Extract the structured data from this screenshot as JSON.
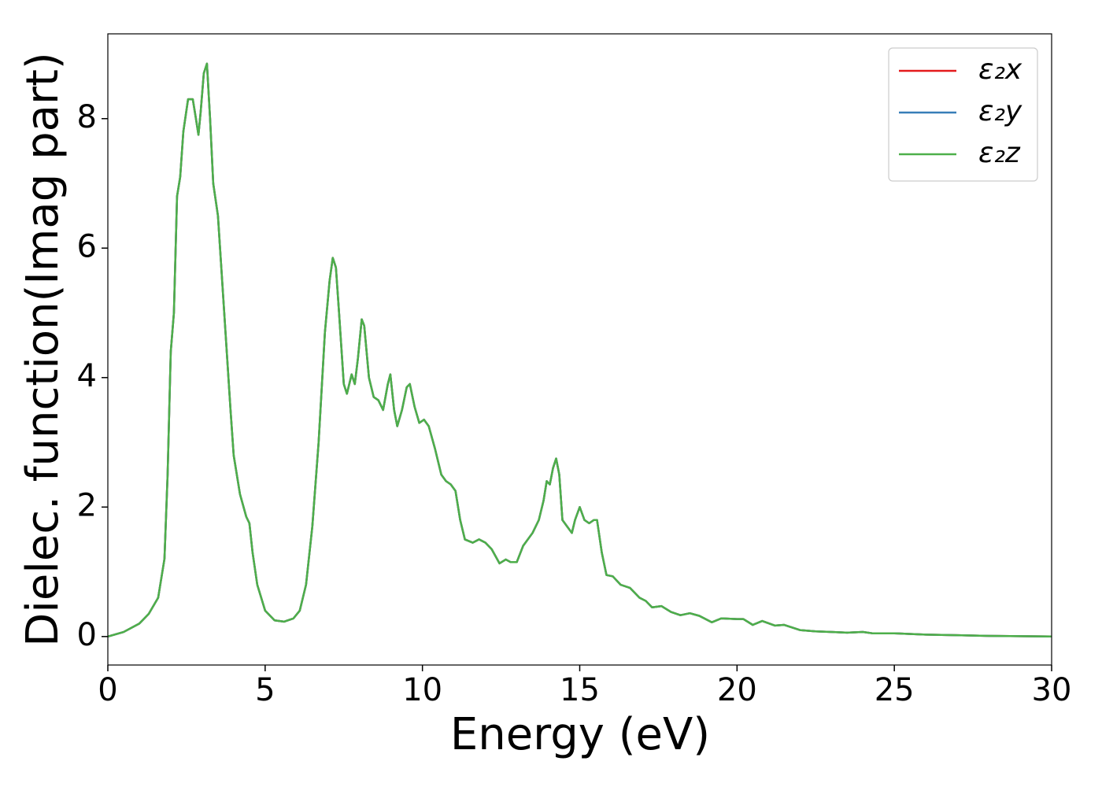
{
  "chart_data": {
    "type": "line",
    "x_label": "Energy (eV)",
    "y_label": "Dielec. function(Imag part)",
    "x": [
      0,
      0.5,
      1,
      1.3,
      1.6,
      1.8,
      1.9,
      2.0,
      2.1,
      2.2,
      2.3,
      2.4,
      2.55,
      2.7,
      2.8,
      2.88,
      2.95,
      3.05,
      3.15,
      3.25,
      3.35,
      3.5,
      3.7,
      3.9,
      4.0,
      4.2,
      4.4,
      4.5,
      4.6,
      4.75,
      5.0,
      5.3,
      5.6,
      5.9,
      6.1,
      6.3,
      6.5,
      6.7,
      6.9,
      7.05,
      7.15,
      7.25,
      7.35,
      7.5,
      7.6,
      7.75,
      7.85,
      7.95,
      8.07,
      8.15,
      8.3,
      8.45,
      8.6,
      8.75,
      8.9,
      8.98,
      9.1,
      9.2,
      9.35,
      9.5,
      9.6,
      9.75,
      9.9,
      10.05,
      10.2,
      10.4,
      10.6,
      10.75,
      10.9,
      11.05,
      11.2,
      11.35,
      11.6,
      11.8,
      12.0,
      12.2,
      12.45,
      12.65,
      12.8,
      13.0,
      13.2,
      13.5,
      13.7,
      13.85,
      13.95,
      14.05,
      14.15,
      14.25,
      14.35,
      14.45,
      14.6,
      14.75,
      14.85,
      15.0,
      15.15,
      15.3,
      15.45,
      15.55,
      15.7,
      15.85,
      16.05,
      16.3,
      16.6,
      16.9,
      17.1,
      17.3,
      17.6,
      17.9,
      18.2,
      18.5,
      18.8,
      19.2,
      19.5,
      20.0,
      20.2,
      20.5,
      20.8,
      21.2,
      21.5,
      22.0,
      22.5,
      23.0,
      23.5,
      24.0,
      24.3,
      25,
      26,
      27,
      28,
      30
    ],
    "series": [
      {
        "name": "ε₂x",
        "color": "#e41a1c",
        "values": [
          0,
          0.07,
          0.2,
          0.35,
          0.6,
          1.2,
          2.5,
          4.4,
          5.0,
          6.8,
          7.1,
          7.8,
          8.3,
          8.3,
          8.0,
          7.75,
          8.1,
          8.7,
          8.85,
          8.0,
          7.0,
          6.5,
          5.0,
          3.5,
          2.8,
          2.2,
          1.85,
          1.75,
          1.3,
          0.8,
          0.4,
          0.25,
          0.23,
          0.28,
          0.4,
          0.8,
          1.7,
          3.0,
          4.7,
          5.5,
          5.85,
          5.7,
          5.0,
          3.9,
          3.75,
          4.05,
          3.9,
          4.3,
          4.9,
          4.8,
          4.0,
          3.7,
          3.65,
          3.5,
          3.9,
          4.05,
          3.5,
          3.25,
          3.5,
          3.85,
          3.9,
          3.55,
          3.3,
          3.35,
          3.25,
          2.9,
          2.5,
          2.4,
          2.35,
          2.25,
          1.8,
          1.5,
          1.45,
          1.5,
          1.45,
          1.35,
          1.13,
          1.19,
          1.15,
          1.15,
          1.4,
          1.6,
          1.8,
          2.1,
          2.4,
          2.35,
          2.6,
          2.75,
          2.5,
          1.8,
          1.7,
          1.6,
          1.8,
          2.0,
          1.8,
          1.75,
          1.8,
          1.8,
          1.3,
          0.95,
          0.93,
          0.8,
          0.75,
          0.6,
          0.55,
          0.45,
          0.47,
          0.38,
          0.33,
          0.36,
          0.32,
          0.22,
          0.28,
          0.27,
          0.27,
          0.18,
          0.24,
          0.17,
          0.18,
          0.1,
          0.08,
          0.07,
          0.06,
          0.07,
          0.05,
          0.05,
          0.03,
          0.02,
          0.01,
          0.0
        ]
      },
      {
        "name": "ε₂y",
        "color": "#377eb8",
        "values": [
          0,
          0.07,
          0.2,
          0.35,
          0.6,
          1.2,
          2.5,
          4.4,
          5.0,
          6.8,
          7.1,
          7.8,
          8.3,
          8.3,
          8.0,
          7.75,
          8.1,
          8.7,
          8.85,
          8.0,
          7.0,
          6.5,
          5.0,
          3.5,
          2.8,
          2.2,
          1.85,
          1.75,
          1.3,
          0.8,
          0.4,
          0.25,
          0.23,
          0.28,
          0.4,
          0.8,
          1.7,
          3.0,
          4.7,
          5.5,
          5.85,
          5.7,
          5.0,
          3.9,
          3.75,
          4.05,
          3.9,
          4.3,
          4.9,
          4.8,
          4.0,
          3.7,
          3.65,
          3.5,
          3.9,
          4.05,
          3.5,
          3.25,
          3.5,
          3.85,
          3.9,
          3.55,
          3.3,
          3.35,
          3.25,
          2.9,
          2.5,
          2.4,
          2.35,
          2.25,
          1.8,
          1.5,
          1.45,
          1.5,
          1.45,
          1.35,
          1.13,
          1.19,
          1.15,
          1.15,
          1.4,
          1.6,
          1.8,
          2.1,
          2.4,
          2.35,
          2.6,
          2.75,
          2.5,
          1.8,
          1.7,
          1.6,
          1.8,
          2.0,
          1.8,
          1.75,
          1.8,
          1.8,
          1.3,
          0.95,
          0.93,
          0.8,
          0.75,
          0.6,
          0.55,
          0.45,
          0.47,
          0.38,
          0.33,
          0.36,
          0.32,
          0.22,
          0.28,
          0.27,
          0.27,
          0.18,
          0.24,
          0.17,
          0.18,
          0.1,
          0.08,
          0.07,
          0.06,
          0.07,
          0.05,
          0.05,
          0.03,
          0.02,
          0.01,
          0.0
        ]
      },
      {
        "name": "ε₂z",
        "color": "#4daf4a",
        "values": [
          0,
          0.07,
          0.2,
          0.35,
          0.6,
          1.2,
          2.5,
          4.4,
          5.0,
          6.8,
          7.1,
          7.8,
          8.3,
          8.3,
          8.0,
          7.75,
          8.1,
          8.7,
          8.85,
          8.0,
          7.0,
          6.5,
          5.0,
          3.5,
          2.8,
          2.2,
          1.85,
          1.75,
          1.3,
          0.8,
          0.4,
          0.25,
          0.23,
          0.28,
          0.4,
          0.8,
          1.7,
          3.0,
          4.7,
          5.5,
          5.85,
          5.7,
          5.0,
          3.9,
          3.75,
          4.05,
          3.9,
          4.3,
          4.9,
          4.8,
          4.0,
          3.7,
          3.65,
          3.5,
          3.9,
          4.05,
          3.5,
          3.25,
          3.5,
          3.85,
          3.9,
          3.55,
          3.3,
          3.35,
          3.25,
          2.9,
          2.5,
          2.4,
          2.35,
          2.25,
          1.8,
          1.5,
          1.45,
          1.5,
          1.45,
          1.35,
          1.13,
          1.19,
          1.15,
          1.15,
          1.4,
          1.6,
          1.8,
          2.1,
          2.4,
          2.35,
          2.6,
          2.75,
          2.5,
          1.8,
          1.7,
          1.6,
          1.8,
          2.0,
          1.8,
          1.75,
          1.8,
          1.8,
          1.3,
          0.95,
          0.93,
          0.8,
          0.75,
          0.6,
          0.55,
          0.45,
          0.47,
          0.38,
          0.33,
          0.36,
          0.32,
          0.22,
          0.28,
          0.27,
          0.27,
          0.18,
          0.24,
          0.17,
          0.18,
          0.1,
          0.08,
          0.07,
          0.06,
          0.07,
          0.05,
          0.05,
          0.03,
          0.02,
          0.01,
          0.0
        ]
      }
    ],
    "xlim": [
      0,
      30
    ],
    "xticks": [
      0,
      5,
      10,
      15,
      20,
      25,
      30
    ],
    "ylim": [
      -0.44,
      9.31
    ],
    "yticks": [
      0,
      2,
      4,
      6,
      8
    ],
    "legend": "upper right"
  }
}
